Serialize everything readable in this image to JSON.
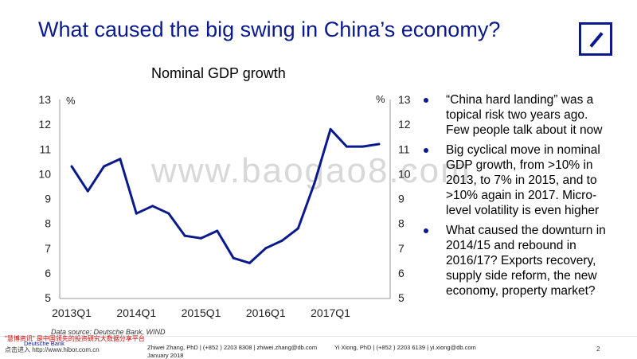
{
  "slide": {
    "title": "What caused the big swing in China’s economy?",
    "chart_title": "Nominal GDP growth",
    "watermark": "www.baogao8.com",
    "bullets": [
      "“China hard landing” was a topical risk two years ago. Few people talk about it now",
      "Big cyclical move in nominal GDP growth, from >10% in 2013, to 7% in 2015, and to >10% again in 2017. Micro-level volatility is even higher",
      "What caused the downturn in 2014/15 and rebound in 2016/17? Exports recovery, supply side reform, the new economy, property market?"
    ],
    "source": "Data source: Deutsche Bank, WIND",
    "footer": {
      "author1": "Zhiwei Zhang, PhD | (+852 ) 2203 8308 | zhiwei.zhang@db.com",
      "date": "January 2018",
      "author2": "Yi Xiong, PhD | (+852 ) 2203 6139 | yi.xiong@db.com",
      "page": "2",
      "brand": "Deutsche Bank",
      "note_red": "\"慧博资讯\" 是中国领先的投资研究大数据分享平台",
      "note_url": "点击进入 http://www.hibor.com.cn"
    },
    "colors": {
      "brand": "#0a1a8c",
      "line": "#0a1a8c"
    }
  },
  "chart_data": {
    "type": "line",
    "title": "Nominal GDP growth",
    "xlabel": "",
    "ylabel": "%",
    "ylabel_right": "%",
    "ylim": [
      5,
      13
    ],
    "yticks": [
      5,
      6,
      7,
      8,
      9,
      10,
      11,
      12,
      13
    ],
    "x": [
      "2013Q1",
      "2013Q2",
      "2013Q3",
      "2013Q4",
      "2014Q1",
      "2014Q2",
      "2014Q3",
      "2014Q4",
      "2015Q1",
      "2015Q2",
      "2015Q3",
      "2015Q4",
      "2016Q1",
      "2016Q2",
      "2016Q3",
      "2016Q4",
      "2017Q1",
      "2017Q2",
      "2017Q3",
      "2017Q4"
    ],
    "xtick_labels": [
      "2013Q1",
      "2014Q1",
      "2015Q1",
      "2016Q1",
      "2017Q1"
    ],
    "series": [
      {
        "values": [
          10.3,
          9.3,
          10.3,
          10.6,
          8.4,
          8.7,
          8.4,
          7.5,
          7.4,
          7.7,
          6.6,
          6.4,
          7.0,
          7.3,
          7.8,
          9.6,
          11.8,
          11.1,
          11.1,
          11.2
        ]
      }
    ],
    "grid": false
  }
}
